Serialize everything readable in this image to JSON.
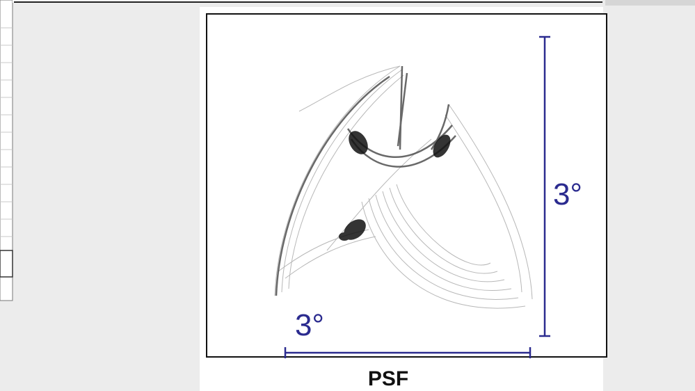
{
  "figure": {
    "vertical_scale_label": "3°",
    "horizontal_scale_label": "3°",
    "caption": "PSF"
  }
}
